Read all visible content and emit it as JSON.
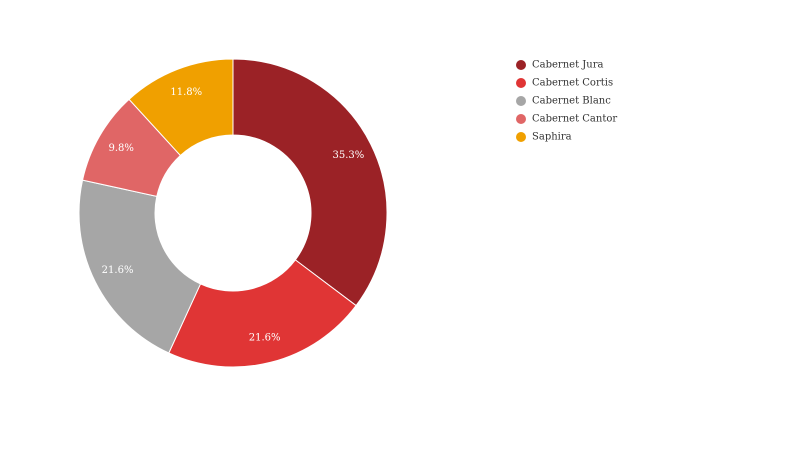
{
  "chart_data": {
    "type": "pie",
    "variant": "donut",
    "categories": [
      "Cabernet Jura",
      "Cabernet Cortis",
      "Cabernet Blanc",
      "Cabernet Cantor",
      "Saphira"
    ],
    "values": [
      35.3,
      21.6,
      21.6,
      9.8,
      11.8
    ],
    "labels": [
      "35.3%",
      "21.6%",
      "21.6%",
      "9.8%",
      "11.8%"
    ],
    "colors": [
      "#9b2226",
      "#e03535",
      "#a6a6a6",
      "#e06666",
      "#f0a000"
    ],
    "legend_position": "top-right"
  }
}
